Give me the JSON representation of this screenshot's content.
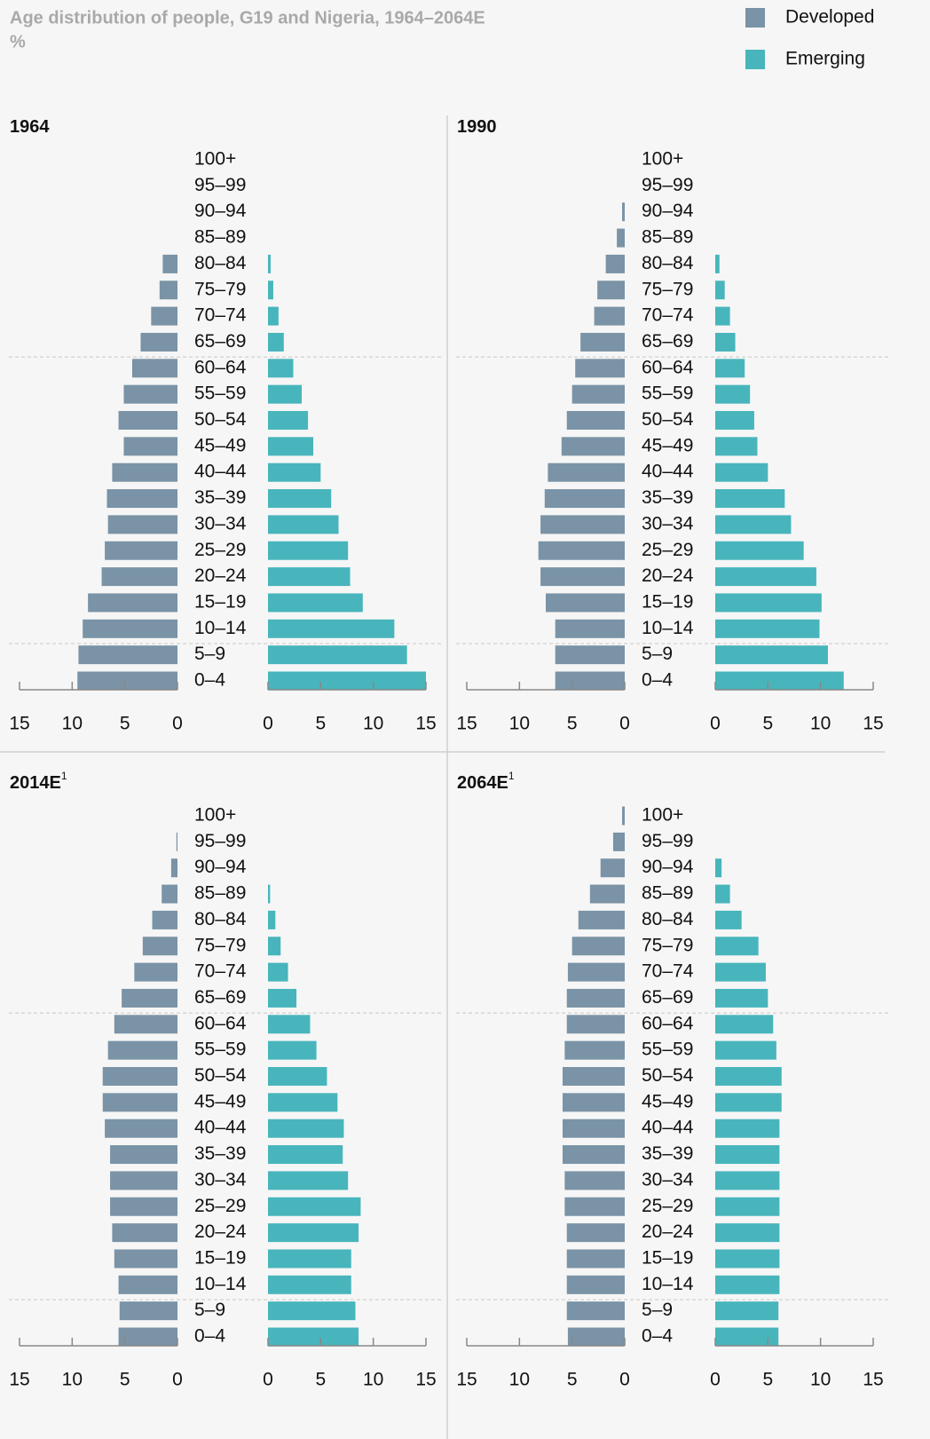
{
  "header": {
    "title": "Age distribution of people, G19 and Nigeria, 1964–2064E",
    "subtitle": "%"
  },
  "chart_data": [
    {
      "type": "pyramid",
      "title": "1964",
      "categories": [
        "100+",
        "95–99",
        "90–94",
        "85–89",
        "80–84",
        "75–79",
        "70–74",
        "65–69",
        "60–64",
        "55–59",
        "50–54",
        "45–49",
        "40–44",
        "35–39",
        "30–34",
        "25–29",
        "20–24",
        "15–19",
        "10–14",
        "5–9",
        "0–4"
      ],
      "series": [
        {
          "name": "Developed",
          "color": "#7a93a6",
          "values": [
            0,
            0,
            0,
            0,
            1.4,
            1.7,
            2.5,
            3.5,
            4.3,
            5.1,
            5.6,
            5.1,
            6.2,
            6.7,
            6.6,
            6.9,
            7.2,
            8.5,
            9.0,
            9.4,
            9.5
          ]
        },
        {
          "name": "Emerging",
          "color": "#48b5bc",
          "values": [
            0,
            0,
            0,
            0,
            0.25,
            0.5,
            1.0,
            1.5,
            2.4,
            3.2,
            3.8,
            4.3,
            5.0,
            6.0,
            6.7,
            7.6,
            7.8,
            9.0,
            12.0,
            13.2,
            15.0
          ]
        }
      ],
      "xlim": [
        0,
        15
      ],
      "xticks": [
        0,
        5,
        10,
        15
      ]
    },
    {
      "type": "pyramid",
      "title": "1990",
      "categories": [
        "100+",
        "95–99",
        "90–94",
        "85–89",
        "80–84",
        "75–79",
        "70–74",
        "65–69",
        "60–64",
        "55–59",
        "50–54",
        "45–49",
        "40–44",
        "35–39",
        "30–34",
        "25–29",
        "20–24",
        "15–19",
        "10–14",
        "5–9",
        "0–4"
      ],
      "series": [
        {
          "name": "Developed",
          "color": "#7a93a6",
          "values": [
            0,
            0,
            0.25,
            0.75,
            1.8,
            2.6,
            2.9,
            4.2,
            4.7,
            5.0,
            5.5,
            6.0,
            7.3,
            7.6,
            8.0,
            8.2,
            8.0,
            7.5,
            6.6,
            6.6,
            6.6
          ]
        },
        {
          "name": "Emerging",
          "color": "#48b5bc",
          "values": [
            0,
            0,
            0,
            0,
            0.4,
            0.9,
            1.4,
            1.9,
            2.8,
            3.3,
            3.7,
            4.0,
            5.0,
            6.6,
            7.2,
            8.4,
            9.6,
            10.1,
            9.9,
            10.7,
            12.2
          ]
        }
      ],
      "xlim": [
        0,
        15
      ],
      "xticks": [
        0,
        5,
        10,
        15
      ]
    },
    {
      "type": "pyramid",
      "title": "2014E",
      "title_note": "1",
      "categories": [
        "100+",
        "95–99",
        "90–94",
        "85–89",
        "80–84",
        "75–79",
        "70–74",
        "65–69",
        "60–64",
        "55–59",
        "50–54",
        "45–49",
        "40–44",
        "35–39",
        "30–34",
        "25–29",
        "20–24",
        "15–19",
        "10–14",
        "5–9",
        "0–4"
      ],
      "series": [
        {
          "name": "Developed",
          "color": "#7a93a6",
          "values": [
            0,
            0.1,
            0.6,
            1.5,
            2.4,
            3.3,
            4.1,
            5.3,
            6.0,
            6.6,
            7.1,
            7.1,
            6.9,
            6.4,
            6.4,
            6.4,
            6.2,
            6.0,
            5.6,
            5.5,
            5.6
          ]
        },
        {
          "name": "Emerging",
          "color": "#48b5bc",
          "values": [
            0,
            0,
            0,
            0.2,
            0.7,
            1.2,
            1.9,
            2.7,
            4.0,
            4.6,
            5.6,
            6.6,
            7.2,
            7.1,
            7.6,
            8.8,
            8.6,
            7.9,
            7.9,
            8.3,
            8.6
          ]
        }
      ],
      "xlim": [
        0,
        15
      ],
      "xticks": [
        0,
        5,
        10,
        15
      ]
    },
    {
      "type": "pyramid",
      "title": "2064E",
      "title_note": "1",
      "categories": [
        "100+",
        "95–99",
        "90–94",
        "85–89",
        "80–84",
        "75–79",
        "70–74",
        "65–69",
        "60–64",
        "55–59",
        "50–54",
        "45–49",
        "40–44",
        "35–39",
        "30–34",
        "25–29",
        "20–24",
        "15–19",
        "10–14",
        "5–9",
        "0–4"
      ],
      "series": [
        {
          "name": "Developed",
          "color": "#7a93a6",
          "values": [
            0.25,
            1.1,
            2.3,
            3.3,
            4.4,
            5.0,
            5.4,
            5.5,
            5.5,
            5.7,
            5.9,
            5.9,
            5.9,
            5.9,
            5.7,
            5.7,
            5.5,
            5.5,
            5.5,
            5.5,
            5.4
          ]
        },
        {
          "name": "Emerging",
          "color": "#48b5bc",
          "values": [
            0,
            0,
            0.6,
            1.4,
            2.5,
            4.1,
            4.8,
            5.0,
            5.5,
            5.8,
            6.3,
            6.3,
            6.1,
            6.1,
            6.1,
            6.1,
            6.1,
            6.1,
            6.1,
            6.0,
            6.0
          ]
        }
      ],
      "xlim": [
        0,
        15
      ],
      "xticks": [
        0,
        5,
        10,
        15
      ]
    }
  ]
}
